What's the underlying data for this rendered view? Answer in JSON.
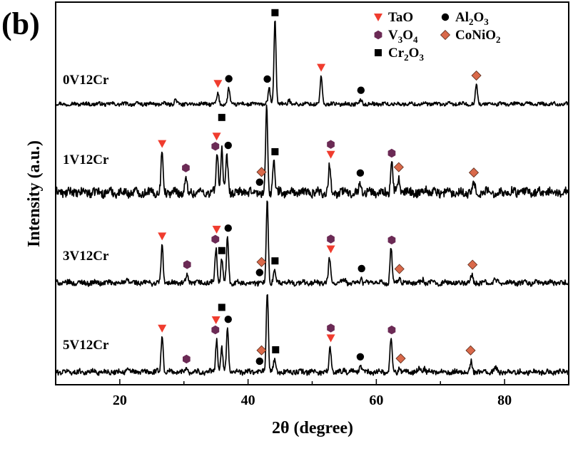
{
  "panel_label": "(b)",
  "chart_data": {
    "type": "line",
    "title": "",
    "xlabel": "2θ (degree)",
    "ylabel": "Intensity (a.u.)",
    "xlim": [
      10,
      90
    ],
    "x_ticks": [
      20,
      40,
      60,
      80
    ],
    "y_ticks": [],
    "grid": false,
    "legend_position": "top-right",
    "legend": [
      {
        "name": "TaO",
        "marker": "triangle-down",
        "color": "#f03c2e"
      },
      {
        "name": "Al2O3",
        "base": "Al",
        "sub1": "2",
        "mid": "O",
        "sub2": "3",
        "marker": "circle",
        "color": "#000000"
      },
      {
        "name": "V3O4",
        "base": "V",
        "sub1": "3",
        "mid": "O",
        "sub2": "4",
        "marker": "hexagon",
        "color": "#6b2a55"
      },
      {
        "name": "CoNiO2",
        "base": "CoNiO",
        "sub1": "2",
        "mid": "",
        "sub2": "",
        "marker": "diamond",
        "color": "#d9694a"
      },
      {
        "name": "Cr2O3",
        "base": "Cr",
        "sub1": "2",
        "mid": "O",
        "sub2": "3",
        "marker": "square",
        "color": "#000000"
      }
    ],
    "series": [
      {
        "name": "0V12Cr",
        "peaks": [
          {
            "x": 28.7,
            "h": 0.05
          },
          {
            "x": 35.3,
            "h": 0.12
          },
          {
            "x": 37.0,
            "h": 0.18
          },
          {
            "x": 43.3,
            "h": 0.18
          },
          {
            "x": 44.2,
            "h": 1.0
          },
          {
            "x": 46.4,
            "h": 0.05
          },
          {
            "x": 51.4,
            "h": 0.32
          },
          {
            "x": 57.6,
            "h": 0.05
          },
          {
            "x": 75.6,
            "h": 0.23
          }
        ],
        "markers": [
          {
            "x": 35.3,
            "type": "triangle-down"
          },
          {
            "x": 37.0,
            "type": "circle"
          },
          {
            "x": 43.0,
            "type": "circle"
          },
          {
            "x": 44.2,
            "type": "square"
          },
          {
            "x": 51.4,
            "type": "triangle-down"
          },
          {
            "x": 57.6,
            "type": "circle"
          },
          {
            "x": 75.6,
            "type": "diamond"
          }
        ]
      },
      {
        "name": "1V12Cr",
        "peaks": [
          {
            "x": 26.6,
            "h": 0.5
          },
          {
            "x": 30.3,
            "h": 0.15
          },
          {
            "x": 35.2,
            "h": 0.5
          },
          {
            "x": 35.9,
            "h": 0.55
          },
          {
            "x": 36.7,
            "h": 0.42
          },
          {
            "x": 42.9,
            "h": 1.0
          },
          {
            "x": 44.0,
            "h": 0.42
          },
          {
            "x": 52.7,
            "h": 0.32
          },
          {
            "x": 57.5,
            "h": 0.12
          },
          {
            "x": 62.4,
            "h": 0.38
          },
          {
            "x": 63.5,
            "h": 0.18
          },
          {
            "x": 67.8,
            "h": 0.07
          },
          {
            "x": 75.2,
            "h": 0.12
          }
        ],
        "markers": [
          {
            "x": 26.6,
            "type": "triangle-down"
          },
          {
            "x": 30.3,
            "type": "hexagon"
          },
          {
            "x": 34.9,
            "type": "hexagon"
          },
          {
            "x": 35.1,
            "type": "triangle-down"
          },
          {
            "x": 35.9,
            "type": "square"
          },
          {
            "x": 36.9,
            "type": "circle"
          },
          {
            "x": 41.8,
            "type": "circle"
          },
          {
            "x": 42.1,
            "type": "diamond"
          },
          {
            "x": 44.2,
            "type": "square"
          },
          {
            "x": 52.9,
            "type": "triangle-down"
          },
          {
            "x": 52.9,
            "type": "hexagon"
          },
          {
            "x": 57.5,
            "type": "circle"
          },
          {
            "x": 62.4,
            "type": "hexagon"
          },
          {
            "x": 63.5,
            "type": "diamond"
          },
          {
            "x": 75.2,
            "type": "diamond"
          }
        ]
      },
      {
        "name": "3V12Cr",
        "peaks": [
          {
            "x": 21.2,
            "h": 0.05
          },
          {
            "x": 26.6,
            "h": 0.45
          },
          {
            "x": 30.5,
            "h": 0.08
          },
          {
            "x": 35.0,
            "h": 0.42
          },
          {
            "x": 35.9,
            "h": 0.28
          },
          {
            "x": 36.8,
            "h": 0.58
          },
          {
            "x": 43.0,
            "h": 1.0
          },
          {
            "x": 44.1,
            "h": 0.15
          },
          {
            "x": 52.7,
            "h": 0.3
          },
          {
            "x": 55.1,
            "h": 0.04
          },
          {
            "x": 57.6,
            "h": 0.06
          },
          {
            "x": 62.3,
            "h": 0.42
          },
          {
            "x": 63.6,
            "h": 0.06
          },
          {
            "x": 67.3,
            "h": 0.04
          },
          {
            "x": 74.9,
            "h": 0.1
          },
          {
            "x": 78.5,
            "h": 0.05
          }
        ],
        "markers": [
          {
            "x": 26.6,
            "type": "triangle-down"
          },
          {
            "x": 30.5,
            "type": "hexagon"
          },
          {
            "x": 34.9,
            "type": "hexagon"
          },
          {
            "x": 35.1,
            "type": "triangle-down"
          },
          {
            "x": 35.9,
            "type": "square"
          },
          {
            "x": 36.9,
            "type": "circle"
          },
          {
            "x": 41.8,
            "type": "circle"
          },
          {
            "x": 42.1,
            "type": "diamond"
          },
          {
            "x": 44.2,
            "type": "square"
          },
          {
            "x": 52.9,
            "type": "triangle-down"
          },
          {
            "x": 52.9,
            "type": "hexagon"
          },
          {
            "x": 57.7,
            "type": "circle"
          },
          {
            "x": 62.4,
            "type": "hexagon"
          },
          {
            "x": 63.6,
            "type": "diamond"
          },
          {
            "x": 75.0,
            "type": "diamond"
          }
        ]
      },
      {
        "name": "5V12Cr",
        "peaks": [
          {
            "x": 21.1,
            "h": 0.04
          },
          {
            "x": 26.6,
            "h": 0.45
          },
          {
            "x": 30.4,
            "h": 0.06
          },
          {
            "x": 35.1,
            "h": 0.4
          },
          {
            "x": 35.9,
            "h": 0.28
          },
          {
            "x": 36.8,
            "h": 0.56
          },
          {
            "x": 43.0,
            "h": 1.0
          },
          {
            "x": 44.1,
            "h": 0.14
          },
          {
            "x": 52.8,
            "h": 0.3
          },
          {
            "x": 55.0,
            "h": 0.04
          },
          {
            "x": 57.5,
            "h": 0.08
          },
          {
            "x": 62.3,
            "h": 0.42
          },
          {
            "x": 63.6,
            "h": 0.06
          },
          {
            "x": 66.8,
            "h": 0.05
          },
          {
            "x": 67.5,
            "h": 0.05
          },
          {
            "x": 74.8,
            "h": 0.12
          },
          {
            "x": 78.6,
            "h": 0.05
          }
        ],
        "markers": [
          {
            "x": 26.6,
            "type": "triangle-down"
          },
          {
            "x": 30.4,
            "type": "hexagon"
          },
          {
            "x": 34.9,
            "type": "hexagon"
          },
          {
            "x": 35.0,
            "type": "triangle-down"
          },
          {
            "x": 35.9,
            "type": "square"
          },
          {
            "x": 36.9,
            "type": "circle"
          },
          {
            "x": 41.8,
            "type": "circle"
          },
          {
            "x": 42.1,
            "type": "diamond"
          },
          {
            "x": 44.3,
            "type": "square"
          },
          {
            "x": 52.9,
            "type": "triangle-down"
          },
          {
            "x": 52.9,
            "type": "hexagon"
          },
          {
            "x": 57.5,
            "type": "circle"
          },
          {
            "x": 62.4,
            "type": "hexagon"
          },
          {
            "x": 63.8,
            "type": "diamond"
          },
          {
            "x": 74.7,
            "type": "diamond"
          }
        ]
      }
    ]
  }
}
